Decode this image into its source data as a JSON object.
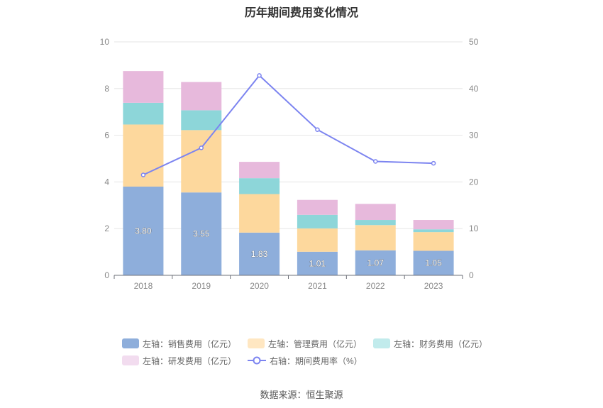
{
  "chart_data": {
    "type": "bar",
    "title": "历年期间费用变化情况",
    "categories": [
      "2018",
      "2019",
      "2020",
      "2021",
      "2022",
      "2023"
    ],
    "left_axis": {
      "ylim": [
        0,
        10
      ],
      "ticks": [
        "0",
        "2",
        "4",
        "6",
        "8",
        "10"
      ]
    },
    "right_axis": {
      "ylim": [
        0,
        50
      ],
      "ticks": [
        "0",
        "10",
        "20",
        "30",
        "40",
        "50"
      ]
    },
    "series": [
      {
        "name": "左轴：销售费用（亿元）",
        "kind": "bar",
        "axis": "left",
        "color": "#8eaedb",
        "values": [
          3.8,
          3.55,
          1.83,
          1.01,
          1.07,
          1.05
        ],
        "labels": [
          "3.80",
          "3.55",
          "1.83",
          "1.01",
          "1.07",
          "1.05"
        ]
      },
      {
        "name": "左轴：管理费用（亿元）",
        "kind": "bar",
        "axis": "left",
        "color": "#fdd89d",
        "values": [
          2.66,
          2.67,
          1.65,
          1.0,
          1.08,
          0.8
        ]
      },
      {
        "name": "左轴：财务费用（亿元）",
        "kind": "bar",
        "axis": "left",
        "color": "#8dd6d9",
        "values": [
          0.93,
          0.85,
          0.68,
          0.58,
          0.22,
          0.12
        ]
      },
      {
        "name": "左轴：研发费用（亿元）",
        "kind": "bar",
        "axis": "left",
        "color": "#e7b9dc",
        "values": [
          1.36,
          1.21,
          0.7,
          0.64,
          0.69,
          0.4
        ]
      },
      {
        "name": "右轴：期间费用率（%）",
        "kind": "line",
        "axis": "right",
        "color": "#7c84f0",
        "values": [
          21.5,
          27.3,
          42.8,
          31.2,
          24.4,
          24.0
        ]
      }
    ],
    "legend_swatch_colors": [
      "#8eaedb",
      "#ffe7c2",
      "#c1ebec",
      "#f2dcef"
    ],
    "source": "数据来源：恒生聚源"
  }
}
